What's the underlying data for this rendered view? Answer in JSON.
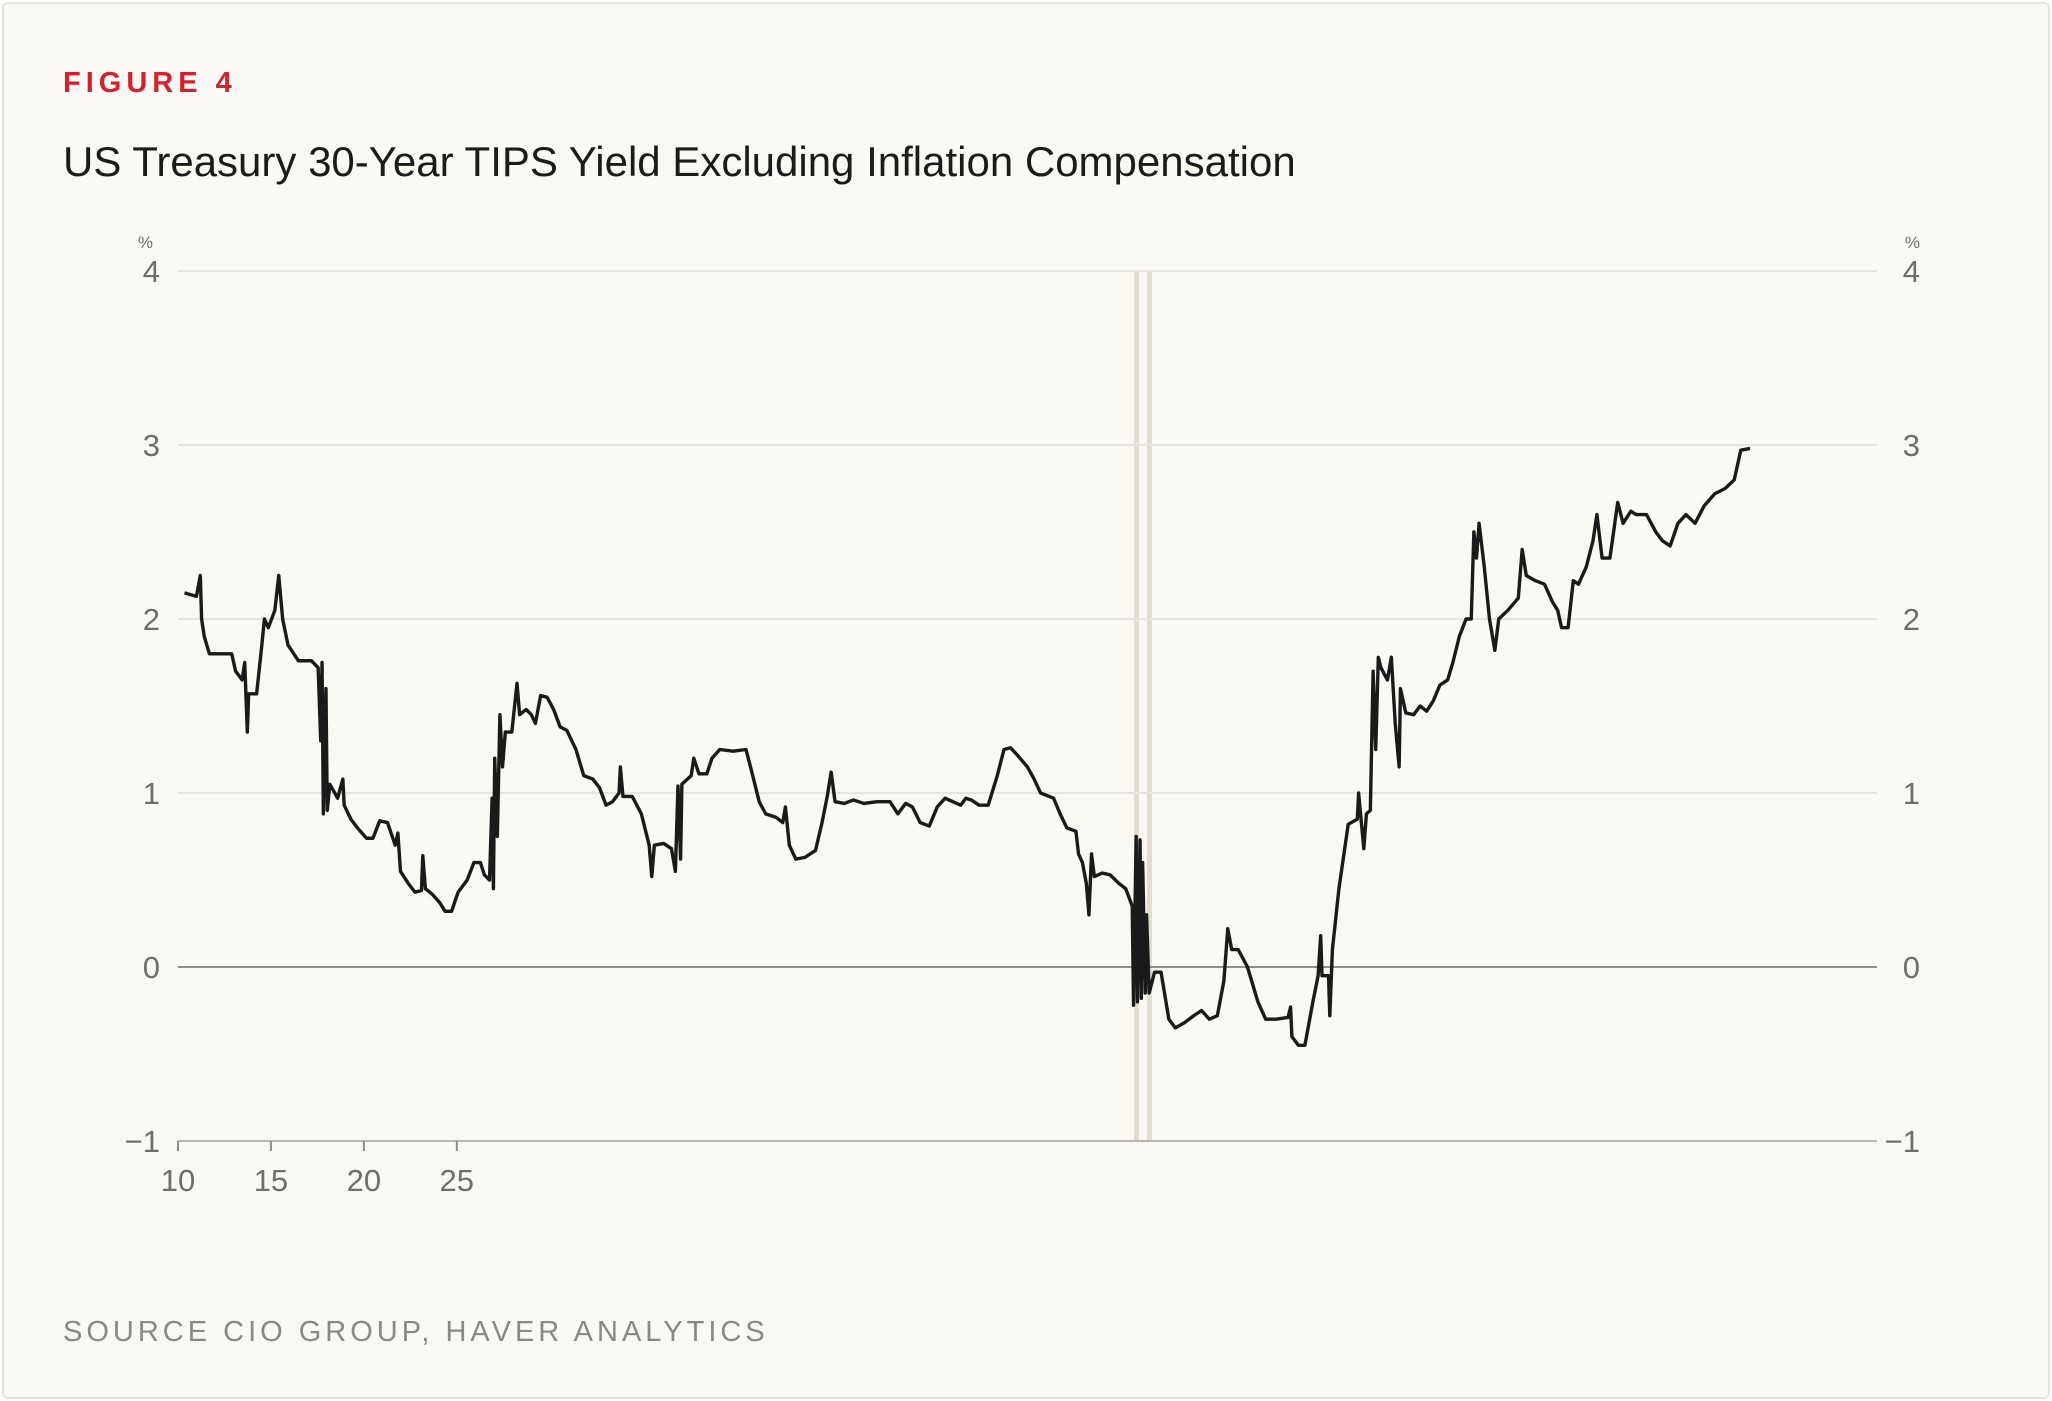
{
  "chart_data": {
    "type": "line",
    "figure_label": "FIGURE 4",
    "title": "US Treasury 30-Year TIPS Yield Excluding Inflation Compensation",
    "source": "SOURCE CIO GROUP, HAVER ANALYTICS",
    "y_unit": "%",
    "xlim": [
      10,
      101.41
    ],
    "xticks": [
      10,
      15,
      20,
      25
    ],
    "ylim": [
      -1,
      4
    ],
    "yticks": [
      {
        "value": -1,
        "label": "−1"
      },
      0,
      1,
      2,
      3,
      4
    ],
    "grid": true,
    "right_axis_labels": true,
    "series": [
      {
        "color": "#1a1a1a",
        "x": [
          10.35,
          10.99,
          11.2,
          11.27,
          11.41,
          11.69,
          12.39,
          12.89,
          13.1,
          13.45,
          13.59,
          13.73,
          13.8,
          14.23,
          14.51,
          14.65,
          14.86,
          15.21,
          15.42,
          15.63,
          15.92,
          16.48,
          17.18,
          17.54,
          17.68,
          17.75,
          17.82,
          17.96,
          18.03,
          18.17,
          18.59,
          18.87,
          18.94,
          19.3,
          19.65,
          20.14,
          20.49,
          20.85,
          21.27,
          21.69,
          21.83,
          21.97,
          22.39,
          22.75,
          23.1,
          23.17,
          23.31,
          23.66,
          24.08,
          24.37,
          24.72,
          25.07,
          25.56,
          25.92,
          26.27,
          26.48,
          26.76,
          26.9,
          26.97,
          27.04,
          27.18,
          27.32,
          27.46,
          27.61,
          27.96,
          28.24,
          28.38,
          28.73,
          29.01,
          29.23,
          29.51,
          29.86,
          30.21,
          30.56,
          30.92,
          31.41,
          31.83,
          32.32,
          32.68,
          33.03,
          33.38,
          33.73,
          33.8,
          33.94,
          34.44,
          34.93,
          35.35,
          35.49,
          35.63,
          36.13,
          36.55,
          36.76,
          36.9,
          37.04,
          37.11,
          37.61,
          37.75,
          38.03,
          38.45,
          38.73,
          39.15,
          39.86,
          40.56,
          40.92,
          41.27,
          41.62,
          42.18,
          42.54,
          42.68,
          42.89,
          43.24,
          43.73,
          44.3,
          44.65,
          44.93,
          45.14,
          45.35,
          45.85,
          46.34,
          46.9,
          47.61,
          48.31,
          48.73,
          49.15,
          49.51,
          49.93,
          50.42,
          50.85,
          51.27,
          51.69,
          52.11,
          52.39,
          52.68,
          53.1,
          53.59,
          54.08,
          54.44,
          54.79,
          55.14,
          55.7,
          56.06,
          56.41,
          57.11,
          57.46,
          57.82,
          58.31,
          58.45,
          58.66,
          58.87,
          59.01,
          59.15,
          59.3,
          59.72,
          60.14,
          60.63,
          60.99,
          61.34,
          61.41,
          61.55,
          61.62,
          61.76,
          61.83,
          61.9,
          62.04,
          62.11,
          62.25,
          62.54,
          62.89,
          63.31,
          63.66,
          64.15,
          64.65,
          65.07,
          65.49,
          65.92,
          66.27,
          66.48,
          66.69,
          67.04,
          67.54,
          67.82,
          68.1,
          68.52,
          69.08,
          69.72,
          69.86,
          69.93,
          70.28,
          70.63,
          71.06,
          71.34,
          71.48,
          71.55,
          71.9,
          71.97,
          72.11,
          72.46,
          72.96,
          73.45,
          73.52,
          73.8,
          73.94,
          74.15,
          74.3,
          74.44,
          74.58,
          74.72,
          75.07,
          75.28,
          75.49,
          75.7,
          75.77,
          76.06,
          76.48,
          76.83,
          77.18,
          77.54,
          77.89,
          78.31,
          78.59,
          78.94,
          79.3,
          79.58,
          79.72,
          79.86,
          80.0,
          80.28,
          80.56,
          80.85,
          81.06,
          81.55,
          82.11,
          82.32,
          82.54,
          83.03,
          83.52,
          83.94,
          84.23,
          84.44,
          84.79,
          85.07,
          85.35,
          85.77,
          86.13,
          86.34,
          86.62,
          87.04,
          87.46,
          87.75,
          88.17,
          88.45,
          89.01,
          89.51,
          89.86,
          90.28,
          90.7,
          91.13,
          91.62,
          92.11,
          92.68,
          93.24,
          93.73,
          94.08,
          94.58
        ],
        "values": [
          2.15,
          2.13,
          2.25,
          2.0,
          1.9,
          1.8,
          1.8,
          1.8,
          1.7,
          1.65,
          1.75,
          1.35,
          1.57,
          1.57,
          1.85,
          2.0,
          1.95,
          2.05,
          2.25,
          2.0,
          1.85,
          1.76,
          1.76,
          1.72,
          1.3,
          1.75,
          0.88,
          1.6,
          0.9,
          1.05,
          0.97,
          1.08,
          0.93,
          0.85,
          0.8,
          0.74,
          0.74,
          0.84,
          0.83,
          0.7,
          0.77,
          0.55,
          0.48,
          0.43,
          0.44,
          0.64,
          0.45,
          0.42,
          0.37,
          0.32,
          0.32,
          0.43,
          0.5,
          0.6,
          0.6,
          0.53,
          0.5,
          0.97,
          0.45,
          1.2,
          0.75,
          1.45,
          1.15,
          1.35,
          1.35,
          1.63,
          1.45,
          1.48,
          1.45,
          1.4,
          1.56,
          1.55,
          1.48,
          1.38,
          1.36,
          1.25,
          1.1,
          1.08,
          1.03,
          0.93,
          0.95,
          1.0,
          1.15,
          0.98,
          0.98,
          0.88,
          0.7,
          0.52,
          0.7,
          0.71,
          0.68,
          0.55,
          1.04,
          0.62,
          1.05,
          1.1,
          1.2,
          1.11,
          1.11,
          1.2,
          1.25,
          1.24,
          1.25,
          1.1,
          0.95,
          0.88,
          0.86,
          0.83,
          0.92,
          0.7,
          0.62,
          0.63,
          0.67,
          0.83,
          0.98,
          1.12,
          0.95,
          0.94,
          0.96,
          0.94,
          0.95,
          0.95,
          0.88,
          0.94,
          0.92,
          0.83,
          0.81,
          0.92,
          0.97,
          0.95,
          0.93,
          0.97,
          0.96,
          0.93,
          0.93,
          1.1,
          1.25,
          1.26,
          1.22,
          1.15,
          1.08,
          1.0,
          0.97,
          0.88,
          0.8,
          0.78,
          0.65,
          0.6,
          0.48,
          0.3,
          0.65,
          0.52,
          0.54,
          0.53,
          0.48,
          0.45,
          0.35,
          -0.22,
          0.75,
          -0.2,
          0.73,
          -0.18,
          0.6,
          -0.15,
          0.3,
          -0.15,
          -0.03,
          -0.03,
          -0.3,
          -0.35,
          -0.32,
          -0.28,
          -0.25,
          -0.3,
          -0.28,
          -0.08,
          0.22,
          0.1,
          0.1,
          0.0,
          -0.1,
          -0.2,
          -0.3,
          -0.3,
          -0.29,
          -0.23,
          -0.4,
          -0.45,
          -0.45,
          -0.2,
          -0.05,
          0.18,
          -0.05,
          -0.05,
          -0.28,
          0.1,
          0.45,
          0.82,
          0.85,
          1.0,
          0.68,
          0.88,
          0.9,
          1.7,
          1.25,
          1.78,
          1.72,
          1.65,
          1.78,
          1.4,
          1.15,
          1.6,
          1.46,
          1.45,
          1.5,
          1.47,
          1.53,
          1.62,
          1.65,
          1.75,
          1.9,
          2.0,
          2.0,
          2.5,
          2.35,
          2.55,
          2.3,
          2.0,
          1.82,
          2.0,
          2.05,
          2.12,
          2.4,
          2.25,
          2.22,
          2.2,
          2.1,
          2.05,
          1.95,
          1.95,
          2.22,
          2.2,
          2.3,
          2.45,
          2.6,
          2.35,
          2.35,
          2.67,
          2.55,
          2.62,
          2.6,
          2.6,
          2.5,
          2.45,
          2.42,
          2.55,
          2.6,
          2.55,
          2.65,
          2.72,
          2.75,
          2.8,
          2.97,
          2.98
        ]
      }
    ]
  }
}
